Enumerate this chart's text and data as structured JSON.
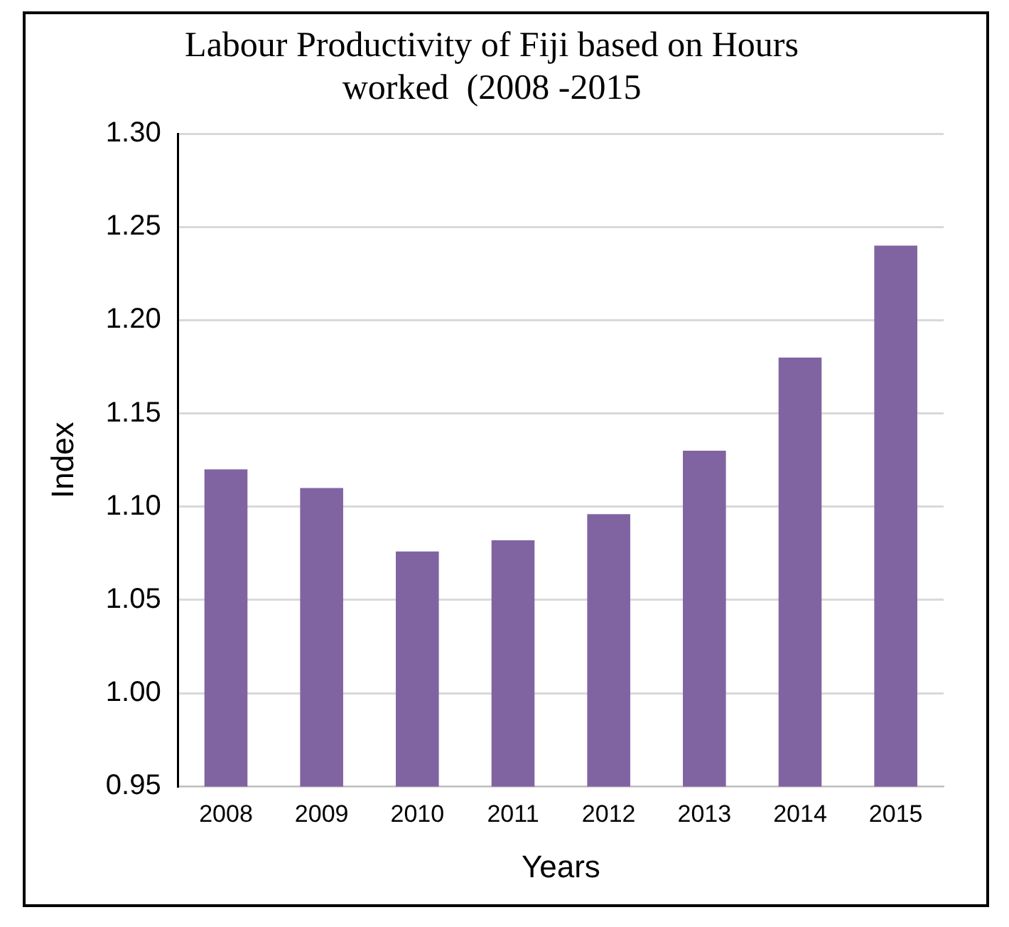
{
  "chart_data": {
    "type": "bar",
    "title": "Labour Productivity of Fiji based on Hours worked  (2008 -2015",
    "xlabel": "Years",
    "ylabel": "Index",
    "categories": [
      "2008",
      "2009",
      "2010",
      "2011",
      "2012",
      "2013",
      "2014",
      "2015"
    ],
    "values": [
      1.12,
      1.11,
      1.076,
      1.082,
      1.096,
      1.13,
      1.18,
      1.24
    ],
    "color": "#8064a2",
    "ylim": [
      0.95,
      1.3
    ],
    "yticks": [
      0.95,
      {
        "value": 1,
        "label": "1.00"
      },
      1.05,
      {
        "value": 1.1,
        "label": "1.10"
      },
      1.15,
      {
        "value": 1.2,
        "label": "1.20"
      },
      1.25,
      {
        "value": 1.3,
        "label": "1.30"
      }
    ],
    "grid": "y",
    "legend": false
  }
}
